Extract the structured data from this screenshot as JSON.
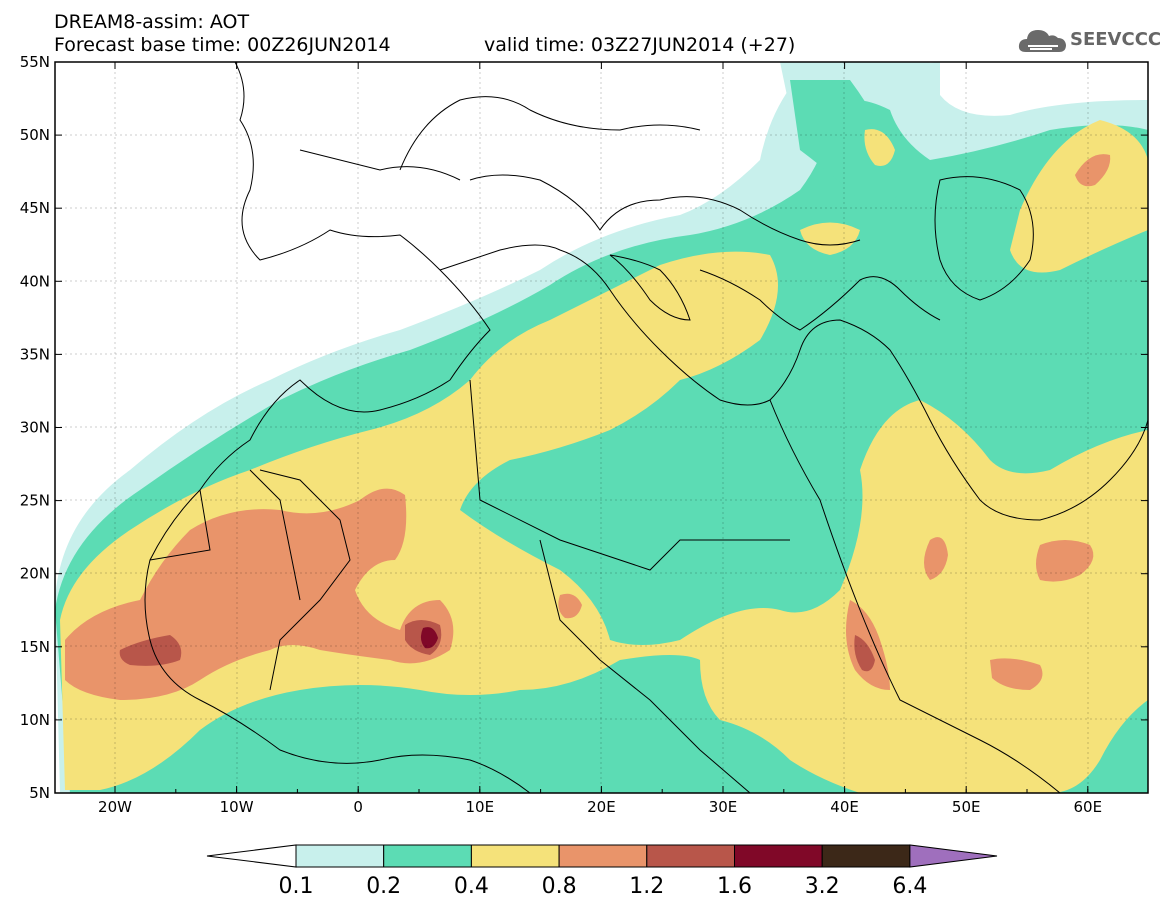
{
  "header": {
    "title": "DREAM8-assim: AOT",
    "base_time": "Forecast base time: 00Z26JUN2014",
    "valid_time": "valid time: 03Z27JUN2014 (+27)"
  },
  "logo": {
    "text": "SEEVCCC",
    "icon": "cloud-icon"
  },
  "axes": {
    "lon_labels": [
      "20W",
      "10W",
      "0",
      "10E",
      "20E",
      "30E",
      "40E",
      "50E",
      "60E"
    ],
    "lat_labels": [
      "55N",
      "50N",
      "45N",
      "40N",
      "35N",
      "30N",
      "25N",
      "20N",
      "15N",
      "10N",
      "5N"
    ]
  },
  "colorbar": {
    "labels": [
      "0.1",
      "0.2",
      "0.4",
      "0.8",
      "1.2",
      "1.6",
      "3.2",
      "6.4"
    ],
    "colors": [
      "#c8f0ec",
      "#5cdcb4",
      "#f5e27a",
      "#e9946a",
      "#b8564a",
      "#800828",
      "#3c2818"
    ],
    "under_color": "#ffffff",
    "over_color": "#9f6fbd"
  },
  "fill_colors": {
    "c01": "#c8f0ec",
    "c02": "#5cdcb4",
    "c04": "#f5e27a",
    "c08": "#e9946a",
    "c12": "#b8564a",
    "c16": "#800828"
  }
}
